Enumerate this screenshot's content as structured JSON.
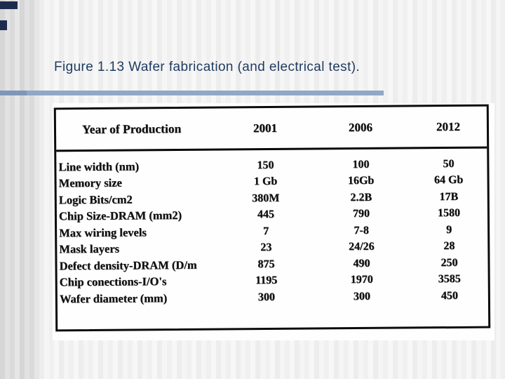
{
  "slide": {
    "title": "Figure 1.13 Wafer fabrication (and electrical test).",
    "title_color": "#1e3a5f",
    "rule_color": "#90a7c6",
    "corner_square_color": "#1d2c4d",
    "background_style": "light vertical gray stripes, darker band at left edge"
  },
  "chart_data": {
    "type": "table",
    "title": "Wafer fabrication (and electrical test)",
    "columns": [
      "Year of Production",
      "2001",
      "2006",
      "2012"
    ],
    "rows": [
      [
        "Line width (nm)",
        "150",
        "100",
        "50"
      ],
      [
        "Memory size",
        "1 Gb",
        "16Gb",
        "64 Gb"
      ],
      [
        "Logic Bits/cm2",
        "380M",
        "2.2B",
        "17B"
      ],
      [
        "Chip Size-DRAM (mm2)",
        "445",
        "790",
        "1580"
      ],
      [
        "Max wiring levels",
        "7",
        "7-8",
        "9"
      ],
      [
        "Mask layers",
        "23",
        "24/26",
        "28"
      ],
      [
        "Defect density-DRAM (D/m",
        "875",
        "490",
        "250"
      ],
      [
        "Chip conections-I/O's",
        "1195",
        "1970",
        "3585"
      ],
      [
        "Wafer diameter (mm)",
        "300",
        "300",
        "450"
      ]
    ]
  }
}
